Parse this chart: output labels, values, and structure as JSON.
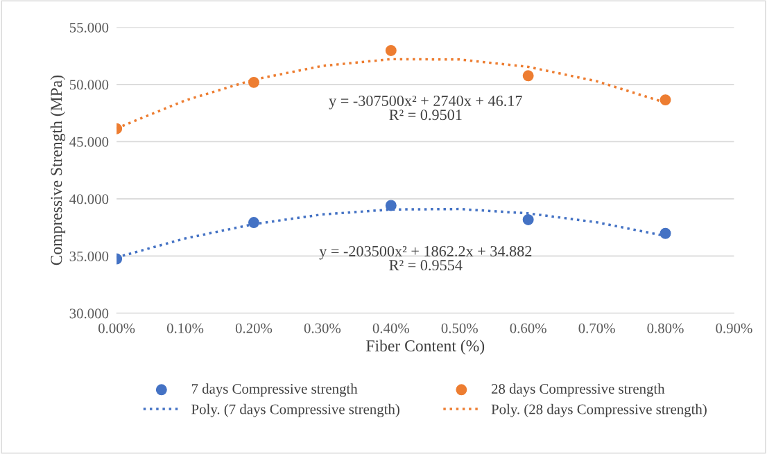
{
  "chart_data": {
    "type": "scatter",
    "xlabel": "Fiber Content (%)",
    "ylabel": "Compressive Strength (MPa)",
    "xlim": [
      0,
      0.009
    ],
    "ylim": [
      30,
      55
    ],
    "xticks": [
      {
        "value": 0,
        "label": "0.00%"
      },
      {
        "value": 0.001,
        "label": "0.10%"
      },
      {
        "value": 0.002,
        "label": "0.20%"
      },
      {
        "value": 0.003,
        "label": "0.30%"
      },
      {
        "value": 0.004,
        "label": "0.40%"
      },
      {
        "value": 0.005,
        "label": "0.50%"
      },
      {
        "value": 0.006,
        "label": "0.60%"
      },
      {
        "value": 0.007,
        "label": "0.70%"
      },
      {
        "value": 0.008,
        "label": "0.80%"
      },
      {
        "value": 0.009,
        "label": "0.90%"
      }
    ],
    "yticks": [
      {
        "value": 30,
        "label": "30.000"
      },
      {
        "value": 35,
        "label": "35.000"
      },
      {
        "value": 40,
        "label": "40.000"
      },
      {
        "value": 45,
        "label": "45.000"
      },
      {
        "value": 50,
        "label": "50.000"
      },
      {
        "value": 55,
        "label": "55.000"
      }
    ],
    "grid": "y",
    "legend": "bottom",
    "series": [
      {
        "name": "7 days Compressive strength",
        "marker": "circle",
        "color": "#4472c4",
        "x": [
          0,
          0.002,
          0.004,
          0.006,
          0.008
        ],
        "values": [
          34.75,
          37.93,
          39.42,
          38.18,
          36.98
        ]
      },
      {
        "name": "28 days Compressive strength",
        "marker": "circle",
        "color": "#ed7d31",
        "x": [
          0,
          0.002,
          0.004,
          0.006,
          0.008
        ],
        "values": [
          46.13,
          50.18,
          52.96,
          50.76,
          48.65
        ]
      },
      {
        "name": "Poly. (7 days Compressive strength)",
        "type": "line",
        "line_style": "dotted",
        "color": "#4472c4",
        "x": [
          0,
          0.001,
          0.002,
          0.003,
          0.004,
          0.005,
          0.006,
          0.007,
          0.008
        ],
        "values": [
          34.88,
          36.54,
          37.79,
          38.64,
          39.07,
          39.11,
          38.73,
          37.95,
          36.76
        ]
      },
      {
        "name": "Poly. (28 days Compressive strength)",
        "type": "line",
        "line_style": "dotted",
        "color": "#ed7d31",
        "x": [
          0,
          0.001,
          0.002,
          0.003,
          0.004,
          0.005,
          0.006,
          0.007,
          0.008
        ],
        "values": [
          46.17,
          48.6,
          50.42,
          51.62,
          52.21,
          52.18,
          51.54,
          50.28,
          48.41
        ]
      }
    ],
    "annotations": [
      "y = -203500x² + 1862.2x + 34.882\nR² = 0.9554",
      "y = -307500x² + 2740x + 46.17\nR² = 0.9501"
    ]
  }
}
